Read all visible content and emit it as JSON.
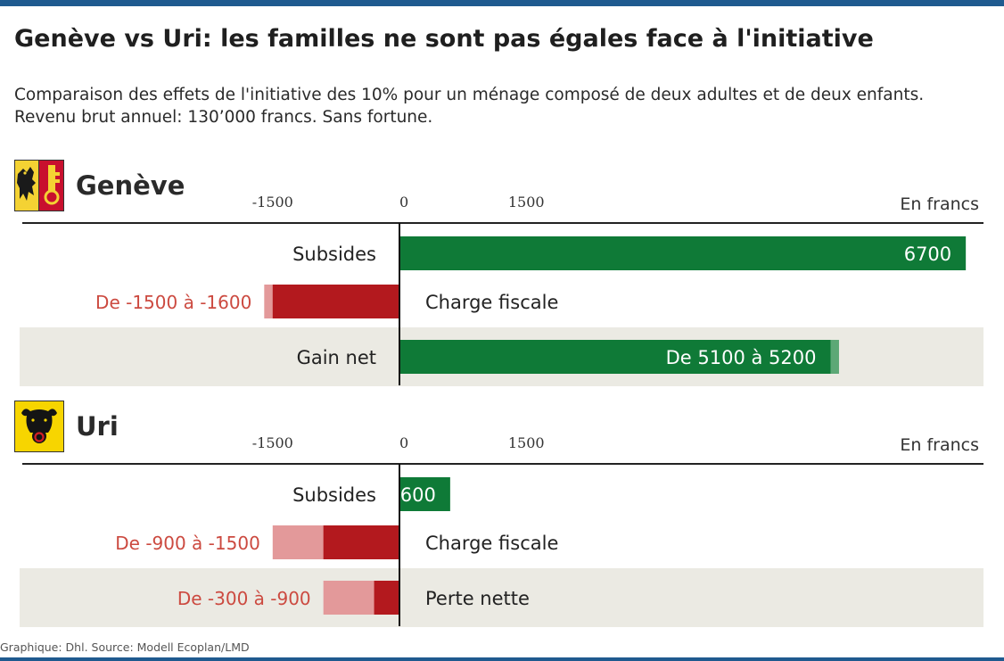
{
  "title": "Genève vs Uri: les familles ne sont pas égales face à l'initiative",
  "subtitle_lines": [
    "Comparaison des effets de l'initiative des 10% pour un ménage composé de deux adultes et de deux enfants.",
    "Revenu brut annuel: 130’000 francs. Sans fortune."
  ],
  "source": "Graphique: Dhl. Source: Modell Ecoplan/LMD",
  "colors": {
    "green": "#0f7a37",
    "green_light": "#5ca876",
    "red": "#b3191e",
    "red_light": "#e3999a",
    "label_red": "#cc4a40",
    "band": "#ebeae3",
    "brand": "#1f5a8f"
  },
  "chart_data": [
    {
      "type": "bar",
      "orientation": "horizontal",
      "panel_title": "Genève",
      "unit_label": "En francs",
      "flag": "geneva-flag-icon",
      "xticks": [
        -1500,
        0,
        1500
      ],
      "categories": [
        "Subsides",
        "Charge fiscale",
        "Gain net"
      ],
      "bars": [
        {
          "category": "Subsides",
          "min": 6700,
          "max": 6700,
          "label": "6700",
          "highlight_band": false
        },
        {
          "category": "Charge fiscale",
          "min": -1600,
          "max": -1500,
          "label": "De -1500 à -1600",
          "highlight_band": false
        },
        {
          "category": "Gain net",
          "min": 5100,
          "max": 5200,
          "label": "De 5100 à 5200",
          "highlight_band": true
        }
      ]
    },
    {
      "type": "bar",
      "orientation": "horizontal",
      "panel_title": "Uri",
      "unit_label": "En francs",
      "flag": "uri-flag-icon",
      "xticks": [
        -1500,
        0,
        1500
      ],
      "categories": [
        "Subsides",
        "Charge fiscale",
        "Perte nette"
      ],
      "bars": [
        {
          "category": "Subsides",
          "min": 600,
          "max": 600,
          "label": "600",
          "highlight_band": false
        },
        {
          "category": "Charge fiscale",
          "min": -1500,
          "max": -900,
          "label": "De -900 à -1500",
          "highlight_band": false
        },
        {
          "category": "Perte nette",
          "min": -900,
          "max": -300,
          "label": "De -300 à -900",
          "highlight_band": true
        }
      ]
    }
  ]
}
